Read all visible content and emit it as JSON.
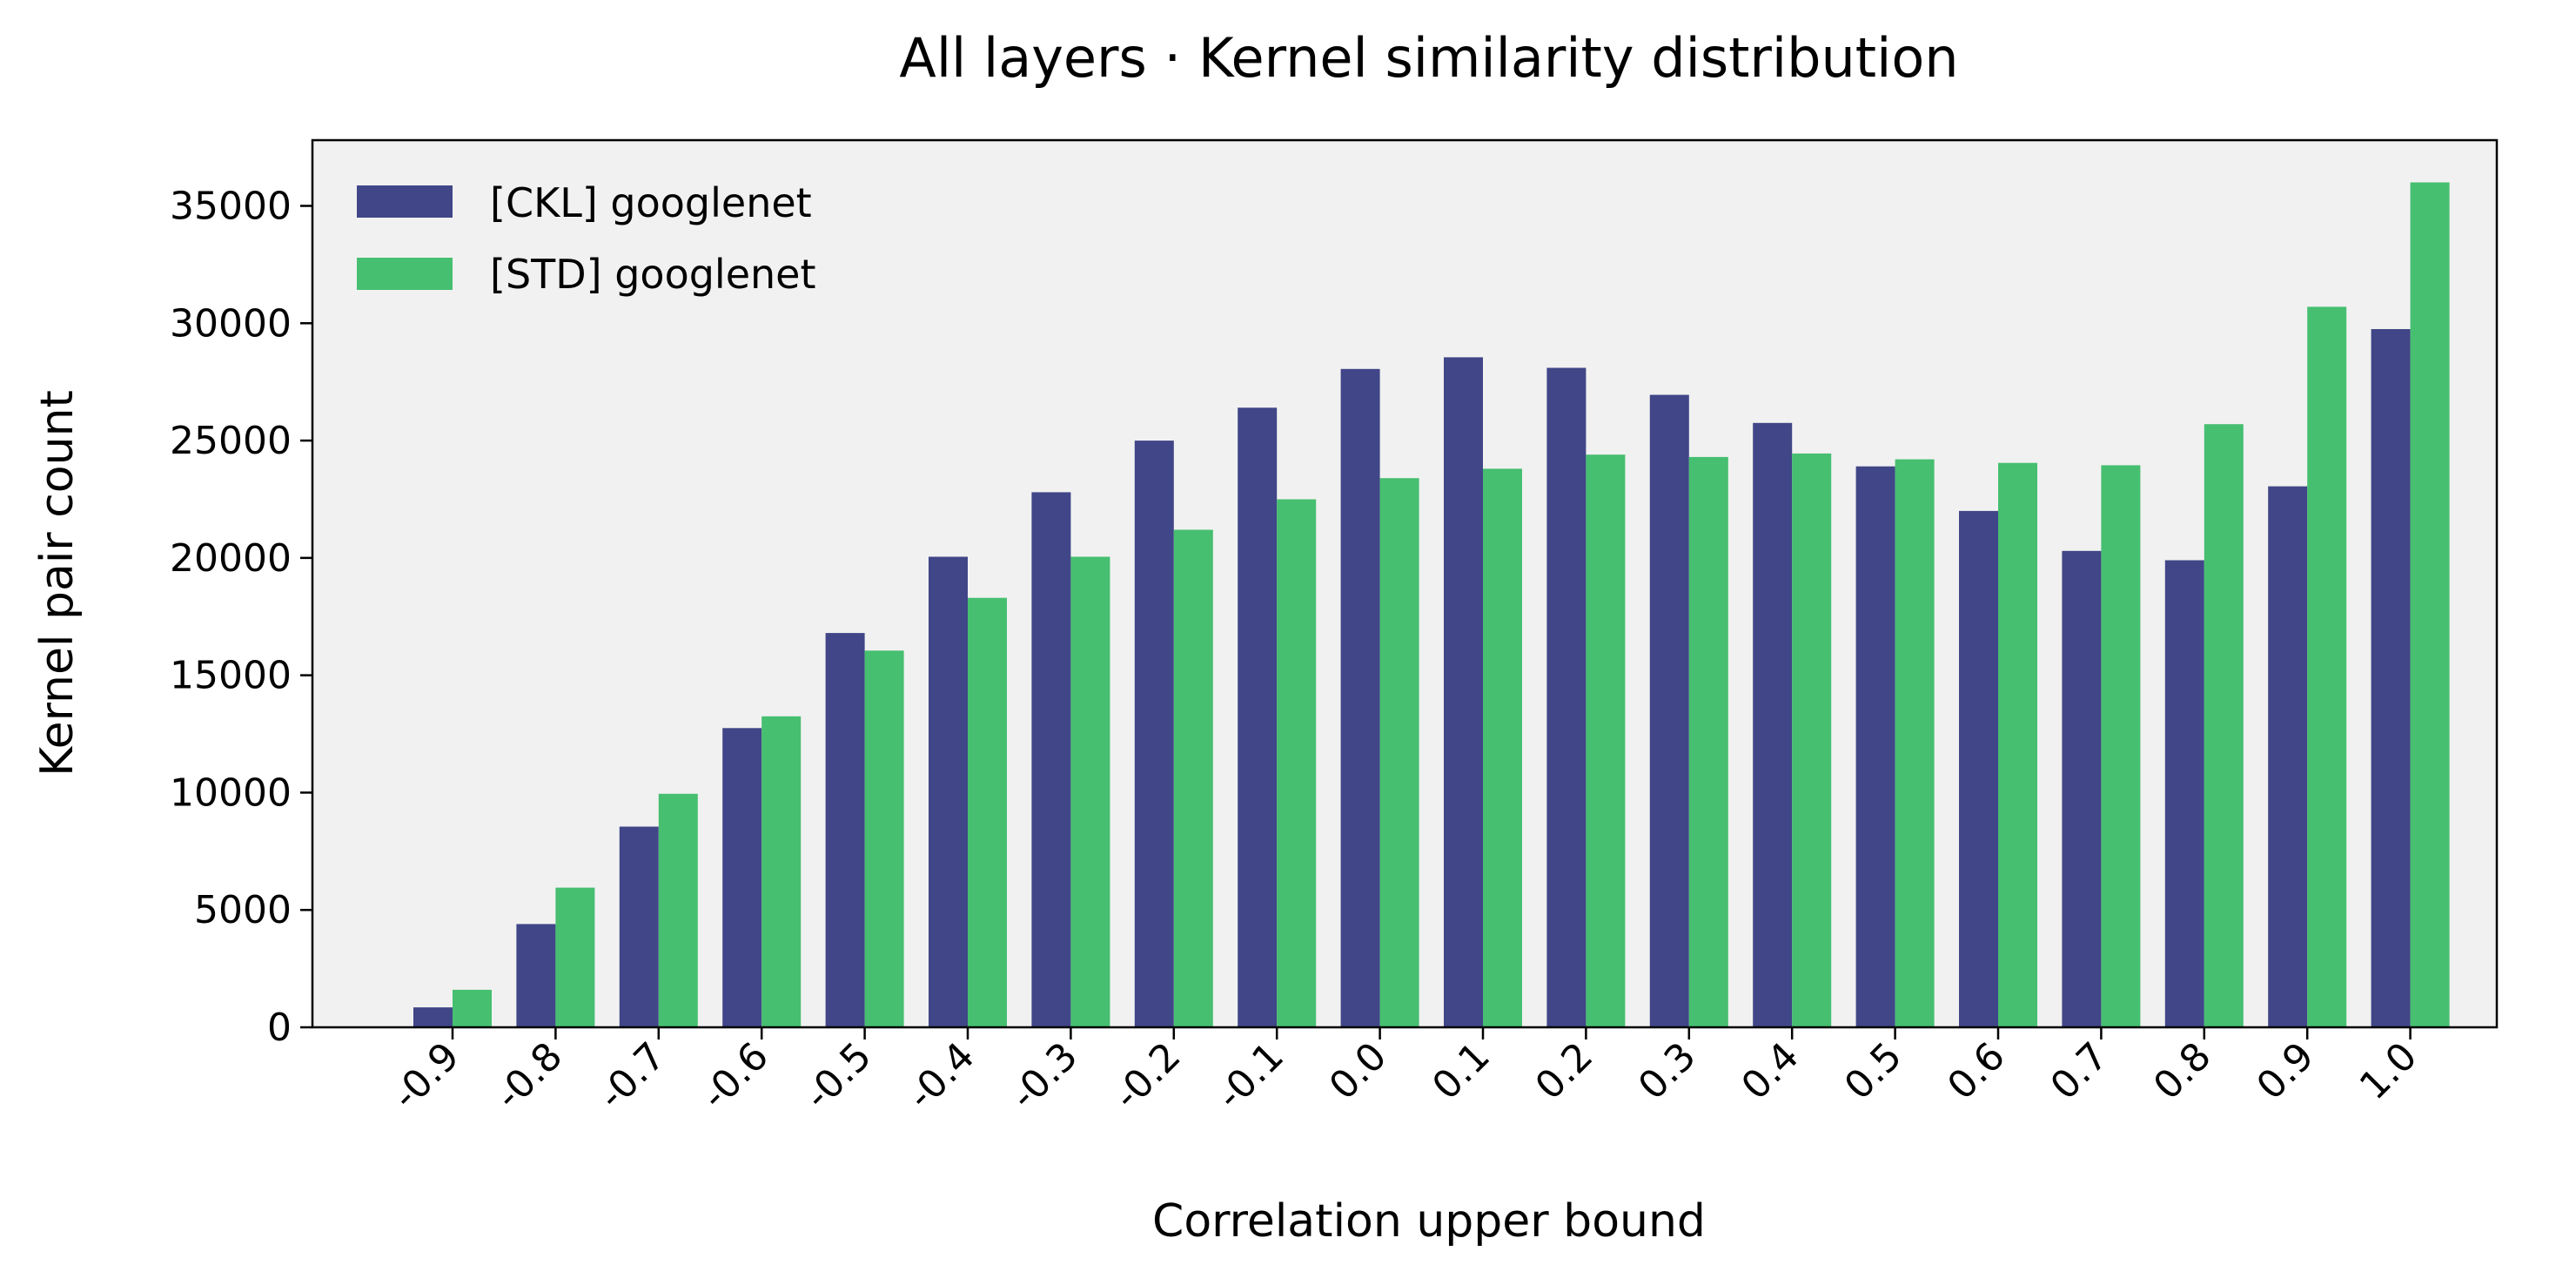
{
  "chart_data": {
    "type": "bar",
    "title": "All layers · Kernel similarity distribution",
    "xlabel": "Correlation upper bound",
    "ylabel": "Kernel pair count",
    "categories": [
      "-0.9",
      "-0.8",
      "-0.7",
      "-0.6",
      "-0.5",
      "-0.4",
      "-0.3",
      "-0.2",
      "-0.1",
      "0.0",
      "0.1",
      "0.2",
      "0.3",
      "0.4",
      "0.5",
      "0.6",
      "0.7",
      "0.8",
      "0.9",
      "1.0"
    ],
    "series": [
      {
        "name": "[CKL] googlenet",
        "color": "#404687",
        "values": [
          850,
          4400,
          8550,
          12750,
          16800,
          20050,
          22800,
          25000,
          26400,
          28050,
          28550,
          28100,
          26950,
          25750,
          23900,
          22000,
          20300,
          19900,
          23050,
          29750
        ]
      },
      {
        "name": "[STD] googlenet",
        "color": "#46bf70",
        "values": [
          1600,
          5950,
          9950,
          13250,
          16050,
          18300,
          20050,
          21200,
          22500,
          23400,
          23800,
          24400,
          24300,
          24450,
          24200,
          24050,
          23950,
          25700,
          30700,
          36000
        ]
      }
    ],
    "yticks": [
      0,
      5000,
      10000,
      15000,
      20000,
      25000,
      30000,
      35000
    ],
    "ylim": [
      0,
      37800
    ],
    "grid": false,
    "legend_position": "upper-left",
    "plot_background": "#f1f1f1"
  }
}
